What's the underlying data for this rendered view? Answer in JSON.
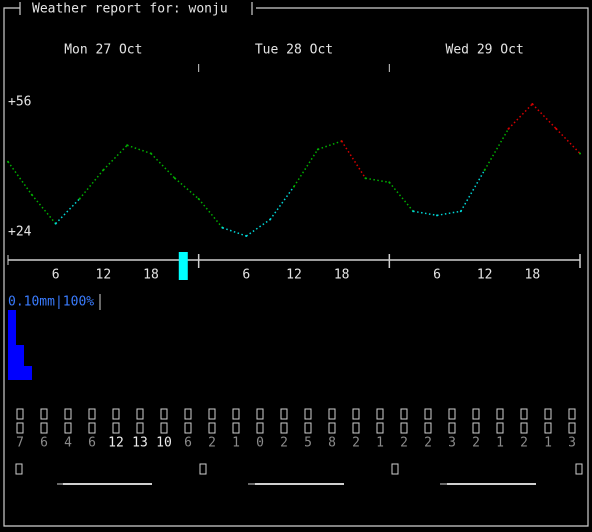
{
  "header": {
    "title": "Weather report for: wonju"
  },
  "chart_data": {
    "type": "line",
    "days": [
      "Mon 27 Oct",
      "Tue 28 Oct",
      "Wed 29 Oct"
    ],
    "x": [
      0,
      3,
      6,
      9,
      12,
      15,
      18,
      21,
      24,
      27,
      30,
      33,
      36,
      39,
      42,
      45,
      48,
      51,
      54,
      57,
      60,
      63,
      66,
      69,
      72
    ],
    "values": [
      42,
      34,
      27,
      33,
      40,
      46,
      44,
      38,
      33,
      26,
      24,
      28,
      36,
      45,
      47,
      38,
      37,
      30,
      29,
      30,
      40,
      50,
      56,
      50,
      44
    ],
    "color_bands": [
      {
        "max": 31,
        "color": "#00d7d7"
      },
      {
        "max": 46,
        "color": "#00af00"
      },
      {
        "max": 100,
        "color": "#d70000"
      }
    ],
    "xlim": [
      0,
      72
    ],
    "xticks": [
      6,
      12,
      18,
      {
        "value": 30,
        "label": "6"
      },
      {
        "value": 36,
        "label": "12"
      },
      {
        "value": 42,
        "label": "18"
      },
      {
        "value": 54,
        "label": "6"
      },
      {
        "value": 60,
        "label": "12"
      },
      {
        "value": 66,
        "label": "18"
      }
    ],
    "day_separators": [
      24,
      48
    ],
    "now": 22,
    "now_color": "#00ffff",
    "ylim": [
      24,
      56
    ],
    "yticks": [
      {
        "value": 56,
        "label": "+56"
      },
      {
        "value": 24,
        "label": "+24"
      }
    ]
  },
  "precipitation": {
    "label": "0.10mm|100%",
    "color": "#0000ff",
    "ylim": [
      0,
      0.1
    ],
    "values": [
      0.1,
      0.05,
      0.02
    ]
  },
  "wind": {
    "values": [
      7,
      6,
      4,
      6,
      12,
      13,
      10,
      6,
      2,
      1,
      0,
      2,
      5,
      8,
      2,
      1,
      2,
      2,
      3,
      2,
      1,
      2,
      1,
      3
    ],
    "color": "#8a8a8a",
    "strong_color": "#ececec",
    "strong_min": 10
  }
}
